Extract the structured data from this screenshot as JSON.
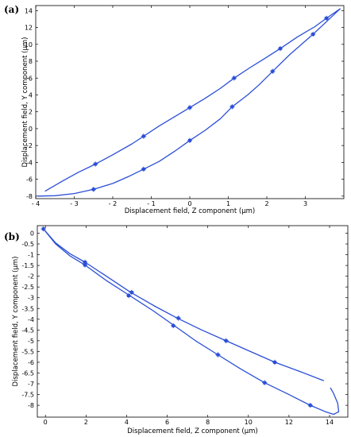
{
  "chart_data": [
    {
      "type": "line",
      "panel_label": "(a)",
      "xlabel": "Displacement field, Z component (µm)",
      "ylabel": "Displacement field, Y component (µm)",
      "xlim": [
        -4,
        4
      ],
      "ylim": [
        -8.3,
        14.6
      ],
      "xticks": [
        -4,
        -3,
        -2,
        -1,
        0,
        1,
        2,
        3
      ],
      "xtick_labels": [
        "- 4",
        "- 3",
        "- 2",
        "- 1",
        "0",
        "1",
        "2",
        "3"
      ],
      "yticks": [
        -8,
        -6,
        -4,
        -2,
        0,
        2,
        4,
        6,
        8,
        10,
        12,
        14
      ],
      "ytick_labels": [
        "-8",
        "-6",
        "-4",
        "-2",
        "0",
        "2",
        "4",
        "6",
        "8",
        "10",
        "12",
        "14"
      ],
      "grid": false,
      "color": "#2b4fd6",
      "series": [
        {
          "x": [
            -3.75,
            -3.3,
            -2.9,
            -2.45,
            -2.0,
            -1.5,
            -1.2,
            -0.8,
            -0.4,
            0.0,
            0.4,
            0.8,
            1.15,
            1.55,
            1.9,
            2.35,
            2.8,
            3.25,
            3.55,
            3.9
          ],
          "y": [
            -7.4,
            -6.2,
            -5.2,
            -4.2,
            -3.1,
            -1.8,
            -0.9,
            0.3,
            1.4,
            2.5,
            3.6,
            4.8,
            6.0,
            7.2,
            8.2,
            9.5,
            10.9,
            12.1,
            13.1,
            14.2
          ]
        },
        {
          "x": [
            -3.95,
            -3.5,
            -3.0,
            -2.5,
            -2.0,
            -1.6,
            -1.2,
            -0.8,
            -0.4,
            0.0,
            0.4,
            0.8,
            1.1,
            1.5,
            1.8,
            2.15,
            2.6,
            3.2,
            3.55,
            3.9
          ],
          "y": [
            -8.0,
            -7.95,
            -7.7,
            -7.2,
            -6.5,
            -5.7,
            -4.8,
            -3.9,
            -2.7,
            -1.4,
            -0.2,
            1.2,
            2.6,
            4.0,
            5.2,
            6.8,
            8.8,
            11.2,
            12.7,
            14.2
          ]
        }
      ],
      "markers": [
        {
          "x": -2.45,
          "y": -4.2
        },
        {
          "x": -1.2,
          "y": -0.9
        },
        {
          "x": 0.0,
          "y": 2.5
        },
        {
          "x": 1.15,
          "y": 6.0
        },
        {
          "x": 2.35,
          "y": 9.5
        },
        {
          "x": 3.55,
          "y": 13.1
        },
        {
          "x": -2.5,
          "y": -7.2
        },
        {
          "x": -1.2,
          "y": -4.8
        },
        {
          "x": 0.0,
          "y": -1.4
        },
        {
          "x": 1.1,
          "y": 2.6
        },
        {
          "x": 2.15,
          "y": 6.8
        },
        {
          "x": 3.2,
          "y": 11.2
        }
      ]
    },
    {
      "type": "line",
      "panel_label": "(b)",
      "xlabel": "Displacement field, Z component (µm)",
      "ylabel": "Displacement field, Y component (µm)",
      "xlim": [
        -0.4,
        14.9
      ],
      "ylim": [
        -8.55,
        0.35
      ],
      "xticks": [
        0,
        2,
        4,
        6,
        8,
        10,
        12,
        14
      ],
      "xtick_labels": [
        "0",
        "2",
        "4",
        "6",
        "8",
        "10",
        "12",
        "14"
      ],
      "yticks": [
        0,
        -0.5,
        -1,
        -1.5,
        -2,
        -2.5,
        -3,
        -3.5,
        -4,
        -4.5,
        -5,
        -5.5,
        -6,
        -6.5,
        -7,
        -7.5,
        -8
      ],
      "ytick_labels": [
        "0",
        "-0.5",
        "-1",
        "-1.5",
        "-2",
        "-2.5",
        "-3",
        "-3.5",
        "-4",
        "-4.5",
        "-5",
        "-5.5",
        "-6",
        "-6.5",
        "-7",
        "-7.5",
        "-8"
      ],
      "grid": false,
      "color": "#2b4fd6",
      "series": [
        {
          "x": [
            -0.1,
            0.5,
            1.2,
            1.95,
            3.0,
            4.2,
            5.4,
            6.5,
            7.7,
            8.9,
            10.1,
            11.3,
            12.6,
            13.7
          ],
          "y": [
            0.2,
            -0.45,
            -0.95,
            -1.35,
            -2.0,
            -2.75,
            -3.4,
            -3.95,
            -4.5,
            -5.0,
            -5.5,
            -6.0,
            -6.45,
            -6.85
          ]
        },
        {
          "x": [
            -0.1,
            0.5,
            1.2,
            1.95,
            3.0,
            4.15,
            5.3,
            6.35,
            7.4,
            8.5,
            9.6,
            10.8,
            12.0,
            13.05,
            13.8,
            14.2,
            14.45,
            14.4,
            14.2,
            14.05
          ],
          "y": [
            0.2,
            -0.5,
            -1.05,
            -1.48,
            -2.2,
            -2.9,
            -3.6,
            -4.3,
            -5.0,
            -5.65,
            -6.3,
            -6.95,
            -7.5,
            -8.0,
            -8.3,
            -8.42,
            -8.3,
            -7.9,
            -7.45,
            -7.2
          ]
        }
      ],
      "markers": [
        {
          "x": -0.1,
          "y": 0.2
        },
        {
          "x": 1.95,
          "y": -1.35
        },
        {
          "x": 4.25,
          "y": -2.75
        },
        {
          "x": 6.55,
          "y": -3.95
        },
        {
          "x": 8.9,
          "y": -5.0
        },
        {
          "x": 11.3,
          "y": -6.0
        },
        {
          "x": 1.95,
          "y": -1.48
        },
        {
          "x": 4.1,
          "y": -2.9
        },
        {
          "x": 6.3,
          "y": -4.3
        },
        {
          "x": 8.5,
          "y": -5.65
        },
        {
          "x": 10.8,
          "y": -6.95
        },
        {
          "x": 13.05,
          "y": -8.0
        }
      ]
    }
  ]
}
